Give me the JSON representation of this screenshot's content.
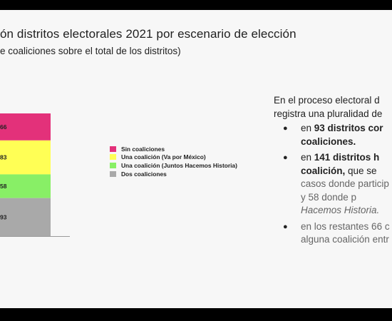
{
  "chart_data": {
    "type": "bar",
    "stacked": true,
    "title": "ón distritos electorales 2021 por escenario de elección",
    "subtitle": "e coaliciones sobre el total de los distritos)",
    "categories": [
      ""
    ],
    "series": [
      {
        "name": "Sin coaliciones",
        "values": [
          66
        ],
        "label": "66",
        "color": "#e3317a"
      },
      {
        "name": "Una coalición (Va por México)",
        "values": [
          83
        ],
        "label": "83",
        "color": "#ffff55"
      },
      {
        "name": "Una coalición (Juntos Hacemos Historia)",
        "values": [
          58
        ],
        "label": "58",
        "color": "#88ef66"
      },
      {
        "name": "Dos coaliciones",
        "values": [
          93
        ],
        "label": "93",
        "color": "#a9a9a9"
      }
    ],
    "legend_position": "right",
    "grid": false
  },
  "right_panel": {
    "intro_lines": [
      "En el proceso electoral d",
      "registra una pluralidad de"
    ],
    "bullets": [
      {
        "parts": [
          {
            "t": "en ",
            "s": "normal"
          },
          {
            "t": "93 distritos cor",
            "s": "bold"
          },
          {
            "t": "coaliciones.",
            "s": "bold",
            "newline": true
          }
        ]
      },
      {
        "parts": [
          {
            "t": "en ",
            "s": "normal"
          },
          {
            "t": "141 distritos h",
            "s": "bold"
          },
          {
            "t": "coalición,",
            "s": "bold",
            "newline": true
          },
          {
            "t": " que se",
            "s": "normal"
          },
          {
            "t": "casos donde particip",
            "s": "muted",
            "newline": true
          },
          {
            "t": "y  58  donde  p",
            "s": "muted",
            "newline": true
          },
          {
            "t": "Hacemos Historia.",
            "s": "muted-italic",
            "newline": true
          }
        ]
      },
      {
        "parts": [
          {
            "t": "en los restantes 66 c",
            "s": "muted"
          },
          {
            "t": "alguna coalición entr",
            "s": "muted",
            "newline": true
          }
        ]
      }
    ]
  }
}
